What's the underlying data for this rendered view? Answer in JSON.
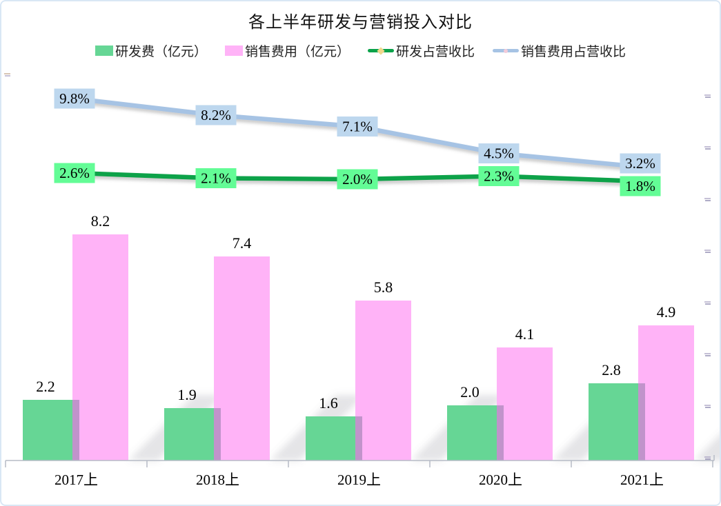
{
  "title": "各上半年研发与营销投入对比",
  "chart_data": {
    "type": "bar+line combo",
    "title": "各上半年研发与营销投入对比",
    "categories": [
      "2017上",
      "2018上",
      "2019上",
      "2020上",
      "2021上"
    ],
    "bar_series": [
      {
        "name": "研发费（亿元）",
        "values": [
          2.2,
          1.9,
          1.6,
          2.0,
          2.8
        ],
        "color": "#66D695"
      },
      {
        "name": "销售费用（亿元）",
        "values": [
          8.2,
          7.4,
          5.8,
          4.1,
          4.9
        ],
        "color": "#FFB3F7"
      }
    ],
    "line_series": [
      {
        "name": "研发占营收比",
        "values_pct": [
          2.6,
          2.1,
          2.0,
          2.3,
          1.8
        ],
        "labels": [
          "2.6%",
          "2.1%",
          "2.0%",
          "2.3%",
          "1.8%"
        ],
        "color": "#0AA24A",
        "label_bg": "#63FC96",
        "marker_accent": "#EFD88C"
      },
      {
        "name": "销售费用占营收比",
        "values_pct": [
          9.8,
          8.2,
          7.1,
          4.5,
          3.2
        ],
        "labels": [
          "9.8%",
          "8.2%",
          "7.1%",
          "4.5%",
          "3.2%"
        ],
        "color": "#A6C3E4",
        "label_bg": "#BDD7EE",
        "marker_accent": "#F2CBD9"
      }
    ],
    "legend_position": "top",
    "grid": false,
    "value_label_color": "#000000",
    "axis_color": "#b6bbc6"
  }
}
